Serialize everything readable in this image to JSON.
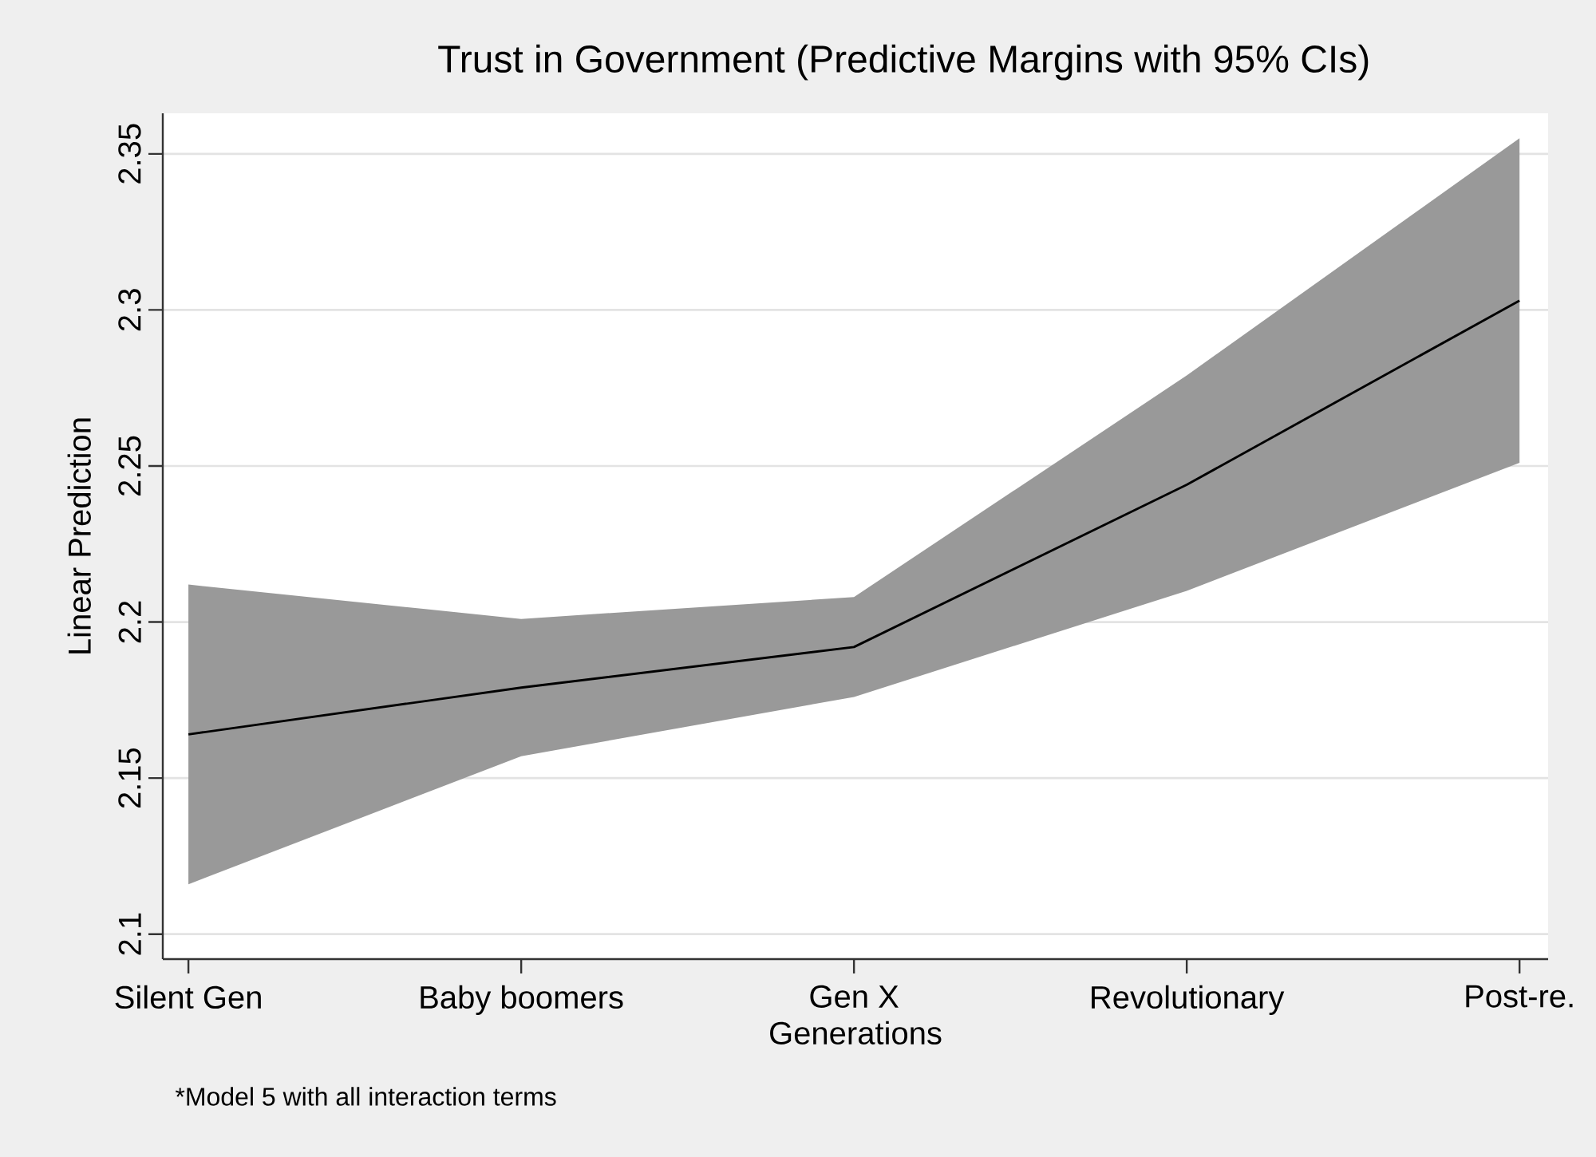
{
  "chart_data": {
    "type": "line",
    "title": "Trust in Government (Predictive Margins with 95% CIs)",
    "xlabel": "Generations",
    "ylabel": "Linear Prediction",
    "categories": [
      "Silent Gen",
      "Baby boomers",
      "Gen X",
      "Revolutionary",
      "Post-re."
    ],
    "series": [
      {
        "color": "#000000",
        "values": [
          2.164,
          2.179,
          2.192,
          2.244,
          2.303
        ],
        "lower": [
          2.116,
          2.157,
          2.176,
          2.21,
          2.251
        ],
        "upper": [
          2.212,
          2.201,
          2.208,
          2.279,
          2.355
        ]
      }
    ],
    "ylim": [
      2.092,
      2.363
    ],
    "yticks": [
      2.1,
      2.15,
      2.2,
      2.25,
      2.3,
      2.35
    ],
    "grid": "y",
    "annotations": [
      "*Model 5 with all interaction terms"
    ]
  }
}
